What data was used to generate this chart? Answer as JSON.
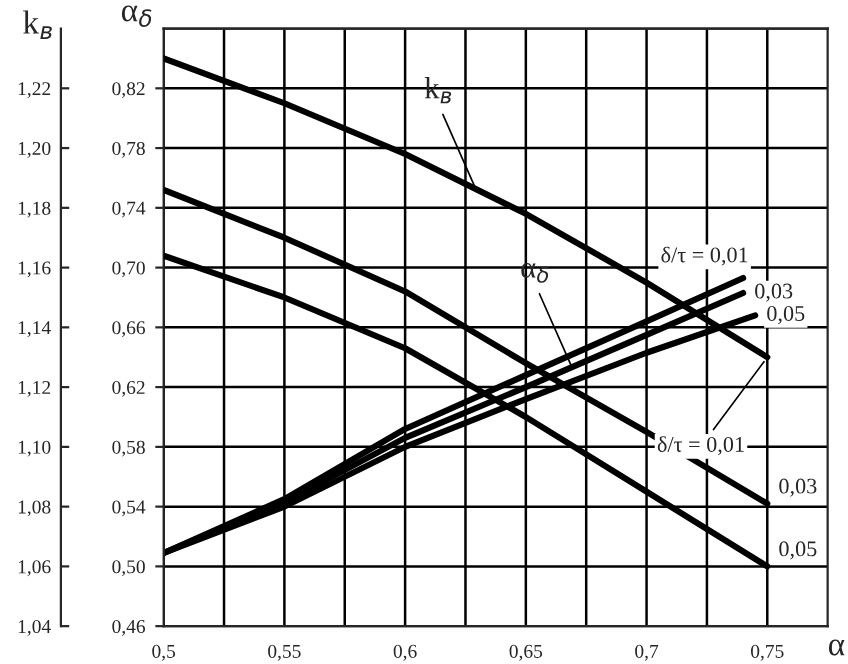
{
  "chart_data": {
    "type": "line",
    "xlabel": "α",
    "ylabel": "α$_{δ}$",
    "y2label": "k$_{в}$",
    "x": [
      0.5,
      0.55,
      0.6,
      0.65,
      0.7,
      0.75
    ],
    "series": [
      {
        "name": "δ/τ = 0,01",
        "color": "#000000",
        "axis": "y2",
        "values": [
          1.23,
          1.215,
          1.198,
          1.178,
          1.155,
          1.13
        ]
      },
      {
        "name": "0,03",
        "color": "#000000",
        "axis": "y2",
        "values": [
          1.186,
          1.17,
          1.152,
          1.128,
          1.105,
          1.081
        ]
      },
      {
        "name": "0,05",
        "color": "#000000",
        "axis": "y2",
        "values": [
          1.164,
          1.15,
          1.133,
          1.11,
          1.085,
          1.06
        ]
      },
      {
        "name": "δ/τ = 0,01",
        "color": "#000000",
        "x": [
          0.5,
          0.55,
          0.6,
          0.65,
          0.7,
          0.74
        ],
        "values": [
          0.509,
          0.545,
          0.592,
          0.628,
          0.664,
          0.693
        ]
      },
      {
        "name": "0,03",
        "color": "#000000",
        "x": [
          0.5,
          0.55,
          0.6,
          0.65,
          0.7,
          0.74
        ],
        "values": [
          0.509,
          0.543,
          0.586,
          0.62,
          0.655,
          0.683
        ]
      },
      {
        "name": "0,05",
        "color": "#000000",
        "x": [
          0.5,
          0.55,
          0.6,
          0.65,
          0.7,
          0.745
        ],
        "values": [
          0.509,
          0.54,
          0.58,
          0.612,
          0.643,
          0.668
        ]
      }
    ],
    "annotations": [
      {
        "text": "k$_{в}$",
        "x": 0.63,
        "y": 0.75
      },
      {
        "text": "α$_{δ}$",
        "x": 0.67,
        "y": 0.63
      }
    ],
    "xlim": [
      0.5,
      0.775
    ],
    "xticks": [
      {
        "value": 0.5,
        "label": "0,5"
      },
      {
        "value": 0.525,
        "label": null
      },
      {
        "value": 0.55,
        "label": "0,55"
      },
      {
        "value": 0.575,
        "label": null
      },
      {
        "value": 0.6,
        "label": "0,6"
      },
      {
        "value": 0.625,
        "label": null
      },
      {
        "value": 0.65,
        "label": "0,65"
      },
      {
        "value": 0.675,
        "label": null
      },
      {
        "value": 0.7,
        "label": "0,7"
      },
      {
        "value": 0.725,
        "label": null
      },
      {
        "value": 0.75,
        "label": "0,75"
      }
    ],
    "ylim": [
      0.46,
      0.86
    ],
    "yticks": [
      {
        "value": 0.46,
        "label": "0,46"
      },
      {
        "value": 0.5,
        "label": "0,50"
      },
      {
        "value": 0.54,
        "label": "0,54"
      },
      {
        "value": 0.58,
        "label": "0,58"
      },
      {
        "value": 0.62,
        "label": "0,62"
      },
      {
        "value": 0.66,
        "label": "0,66"
      },
      {
        "value": 0.7,
        "label": "0,70"
      },
      {
        "value": 0.74,
        "label": "0,74"
      },
      {
        "value": 0.78,
        "label": "0,78"
      },
      {
        "value": 0.82,
        "label": "0,82"
      }
    ],
    "y2lim": [
      1.04,
      1.24
    ],
    "y2ticks": [
      {
        "value": 1.04,
        "label": "1,04"
      },
      {
        "value": 1.06,
        "label": "1,06"
      },
      {
        "value": 1.08,
        "label": "1,08"
      },
      {
        "value": 1.1,
        "label": "1,10"
      },
      {
        "value": 1.12,
        "label": "1,12"
      },
      {
        "value": 1.14,
        "label": "1,14"
      },
      {
        "value": 1.16,
        "label": "1,16"
      },
      {
        "value": 1.18,
        "label": "1,18"
      },
      {
        "value": 1.2,
        "label": "1,20"
      },
      {
        "value": 1.22,
        "label": "1,22"
      }
    ],
    "grid": true,
    "legend": false,
    "line_style": "solid"
  }
}
